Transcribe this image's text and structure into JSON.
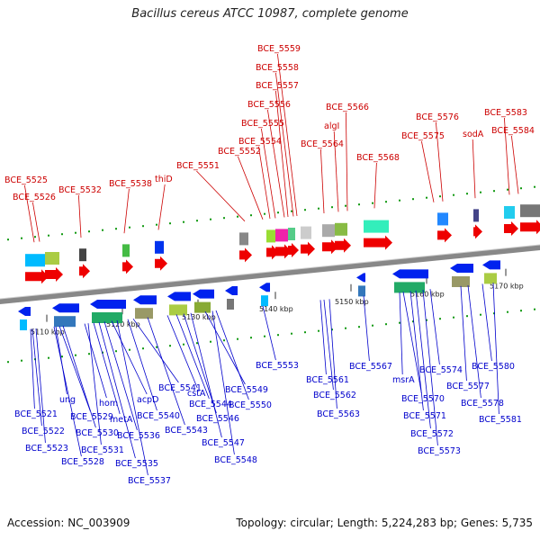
{
  "title": "Bacillus cereus ATCC 10987, complete genome",
  "footer": {
    "accession": "Accession: NC_003909",
    "summary": "Topology: circular; Length: 5,224,283 bp; Genes: 5,735"
  },
  "colors": {
    "forward_label": "#cc0000",
    "reverse_label": "#0000cc",
    "forward_arrow": "#ee0000",
    "reverse_arrow": "#0022ee",
    "backbone": "#888888",
    "tick": "#119911"
  },
  "scale_labels": [
    "5110 kbp",
    "5120 kbp",
    "5130 kbp",
    "5140 kbp",
    "5150 kbp",
    "5160 kbp",
    "5170 kbp"
  ],
  "forward_labels": [
    "BCE_5525",
    "BCE_5526",
    "BCE_5532",
    "BCE_5538",
    "thiD",
    "BCE_5551",
    "BCE_5552",
    "BCE_5554",
    "BCE_5555",
    "BCE_5556",
    "BCE_5557",
    "BCE_5558",
    "BCE_5559",
    "BCE_5564",
    "algI",
    "BCE_5566",
    "BCE_5568",
    "BCE_5575",
    "BCE_5576",
    "sodA",
    "BCE_5583",
    "BCE_5584"
  ],
  "reverse_labels": [
    "BCE_5521",
    "BCE_5522",
    "BCE_5523",
    "ung",
    "BCE_5529",
    "BCE_5530",
    "BCE_5528",
    "hom",
    "BCE_5531",
    "metA",
    "BCE_5536",
    "BCE_5535",
    "acpD",
    "BCE_5537",
    "BCE_5541",
    "BCE_5540",
    "BCE_5543",
    "cstA",
    "BCE_5544",
    "BCE_5546",
    "BCE_5547",
    "BCE_5549",
    "BCE_5550",
    "BCE_5548",
    "BCE_5553",
    "BCE_5561",
    "BCE_5562",
    "BCE_5563",
    "BCE_5567",
    "msrA",
    "BCE_5570",
    "BCE_5571",
    "BCE_5572",
    "BCE_5573",
    "BCE_5574",
    "BCE_5577",
    "BCE_5578",
    "BCE_5580",
    "BCE_5581"
  ]
}
